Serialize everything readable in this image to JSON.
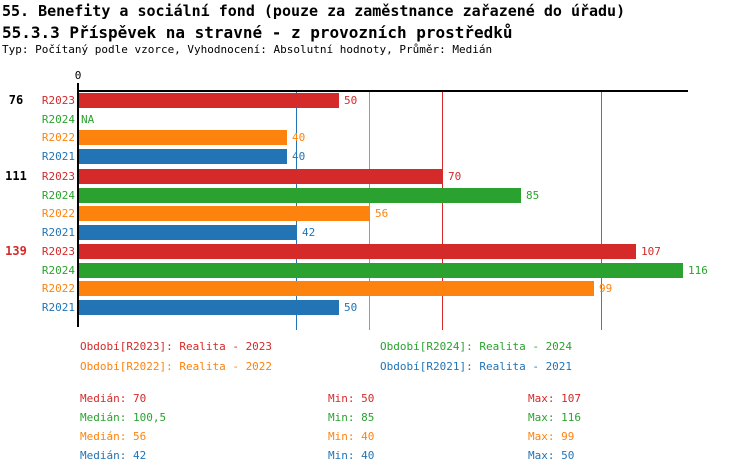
{
  "header": {
    "title_line1": "55. Benefity a sociální fond (pouze za zaměstnance zařazené do úřadu)",
    "title_line2": "55.3.3 Příspěvek na stravné - z provozních prostředků",
    "subtitle": "Typ: Počítaný podle vzorce, Vyhodnocení: Absolutní hodnoty, Průměr: Medián"
  },
  "colors": {
    "R2023": "#d42a2a",
    "R2024": "#2ba22f",
    "R2022": "#fd830e",
    "R2021": "#2274b5",
    "axis": "#000000",
    "highlight_group_label": "#d42a2a",
    "group_label": "#000000"
  },
  "chart_data": {
    "type": "bar",
    "orientation": "horizontal",
    "x_axis": {
      "zero_label": "0",
      "xlim": [
        0,
        117
      ],
      "grid": false
    },
    "series_order": [
      "R2023",
      "R2024",
      "R2022",
      "R2021"
    ],
    "groups": [
      {
        "label": "76",
        "highlight": false,
        "bars": [
          {
            "series": "R2023",
            "value": 50,
            "label": "50"
          },
          {
            "series": "R2024",
            "value": null,
            "label": "NA"
          },
          {
            "series": "R2022",
            "value": 40,
            "label": "40"
          },
          {
            "series": "R2021",
            "value": 40,
            "label": "40"
          }
        ]
      },
      {
        "label": "111",
        "highlight": false,
        "bars": [
          {
            "series": "R2023",
            "value": 70,
            "label": "70"
          },
          {
            "series": "R2024",
            "value": 85,
            "label": "85"
          },
          {
            "series": "R2022",
            "value": 56,
            "label": "56"
          },
          {
            "series": "R2021",
            "value": 42,
            "label": "42"
          }
        ]
      },
      {
        "label": "139",
        "highlight": true,
        "bars": [
          {
            "series": "R2023",
            "value": 107,
            "label": "107"
          },
          {
            "series": "R2024",
            "value": 116,
            "label": "116"
          },
          {
            "series": "R2022",
            "value": 99,
            "label": "99"
          },
          {
            "series": "R2021",
            "value": 50,
            "label": "50"
          }
        ]
      }
    ],
    "median_lines": [
      {
        "series": "R2023",
        "value": 70
      },
      {
        "series": "R2024",
        "value": 100.5
      },
      {
        "series": "R2022",
        "value": 56
      },
      {
        "series": "R2021",
        "value": 42
      }
    ]
  },
  "legend": {
    "items": [
      {
        "series": "R2023",
        "text": "Období[R2023]: Realita - 2023"
      },
      {
        "series": "R2024",
        "text": "Období[R2024]: Realita - 2024"
      },
      {
        "series": "R2022",
        "text": "Období[R2022]: Realita - 2022"
      },
      {
        "series": "R2021",
        "text": "Období[R2021]: Realita - 2021"
      }
    ]
  },
  "stats": {
    "rows": [
      {
        "series": "R2023",
        "median": "Medián: 70",
        "min": "Min: 50",
        "max": "Max: 107"
      },
      {
        "series": "R2024",
        "median": "Medián: 100,5",
        "min": "Min: 85",
        "max": "Max: 116"
      },
      {
        "series": "R2022",
        "median": "Medián: 56",
        "min": "Min: 40",
        "max": "Max: 99"
      },
      {
        "series": "R2021",
        "median": "Medián: 42",
        "min": "Min: 40",
        "max": "Max: 50"
      }
    ]
  }
}
